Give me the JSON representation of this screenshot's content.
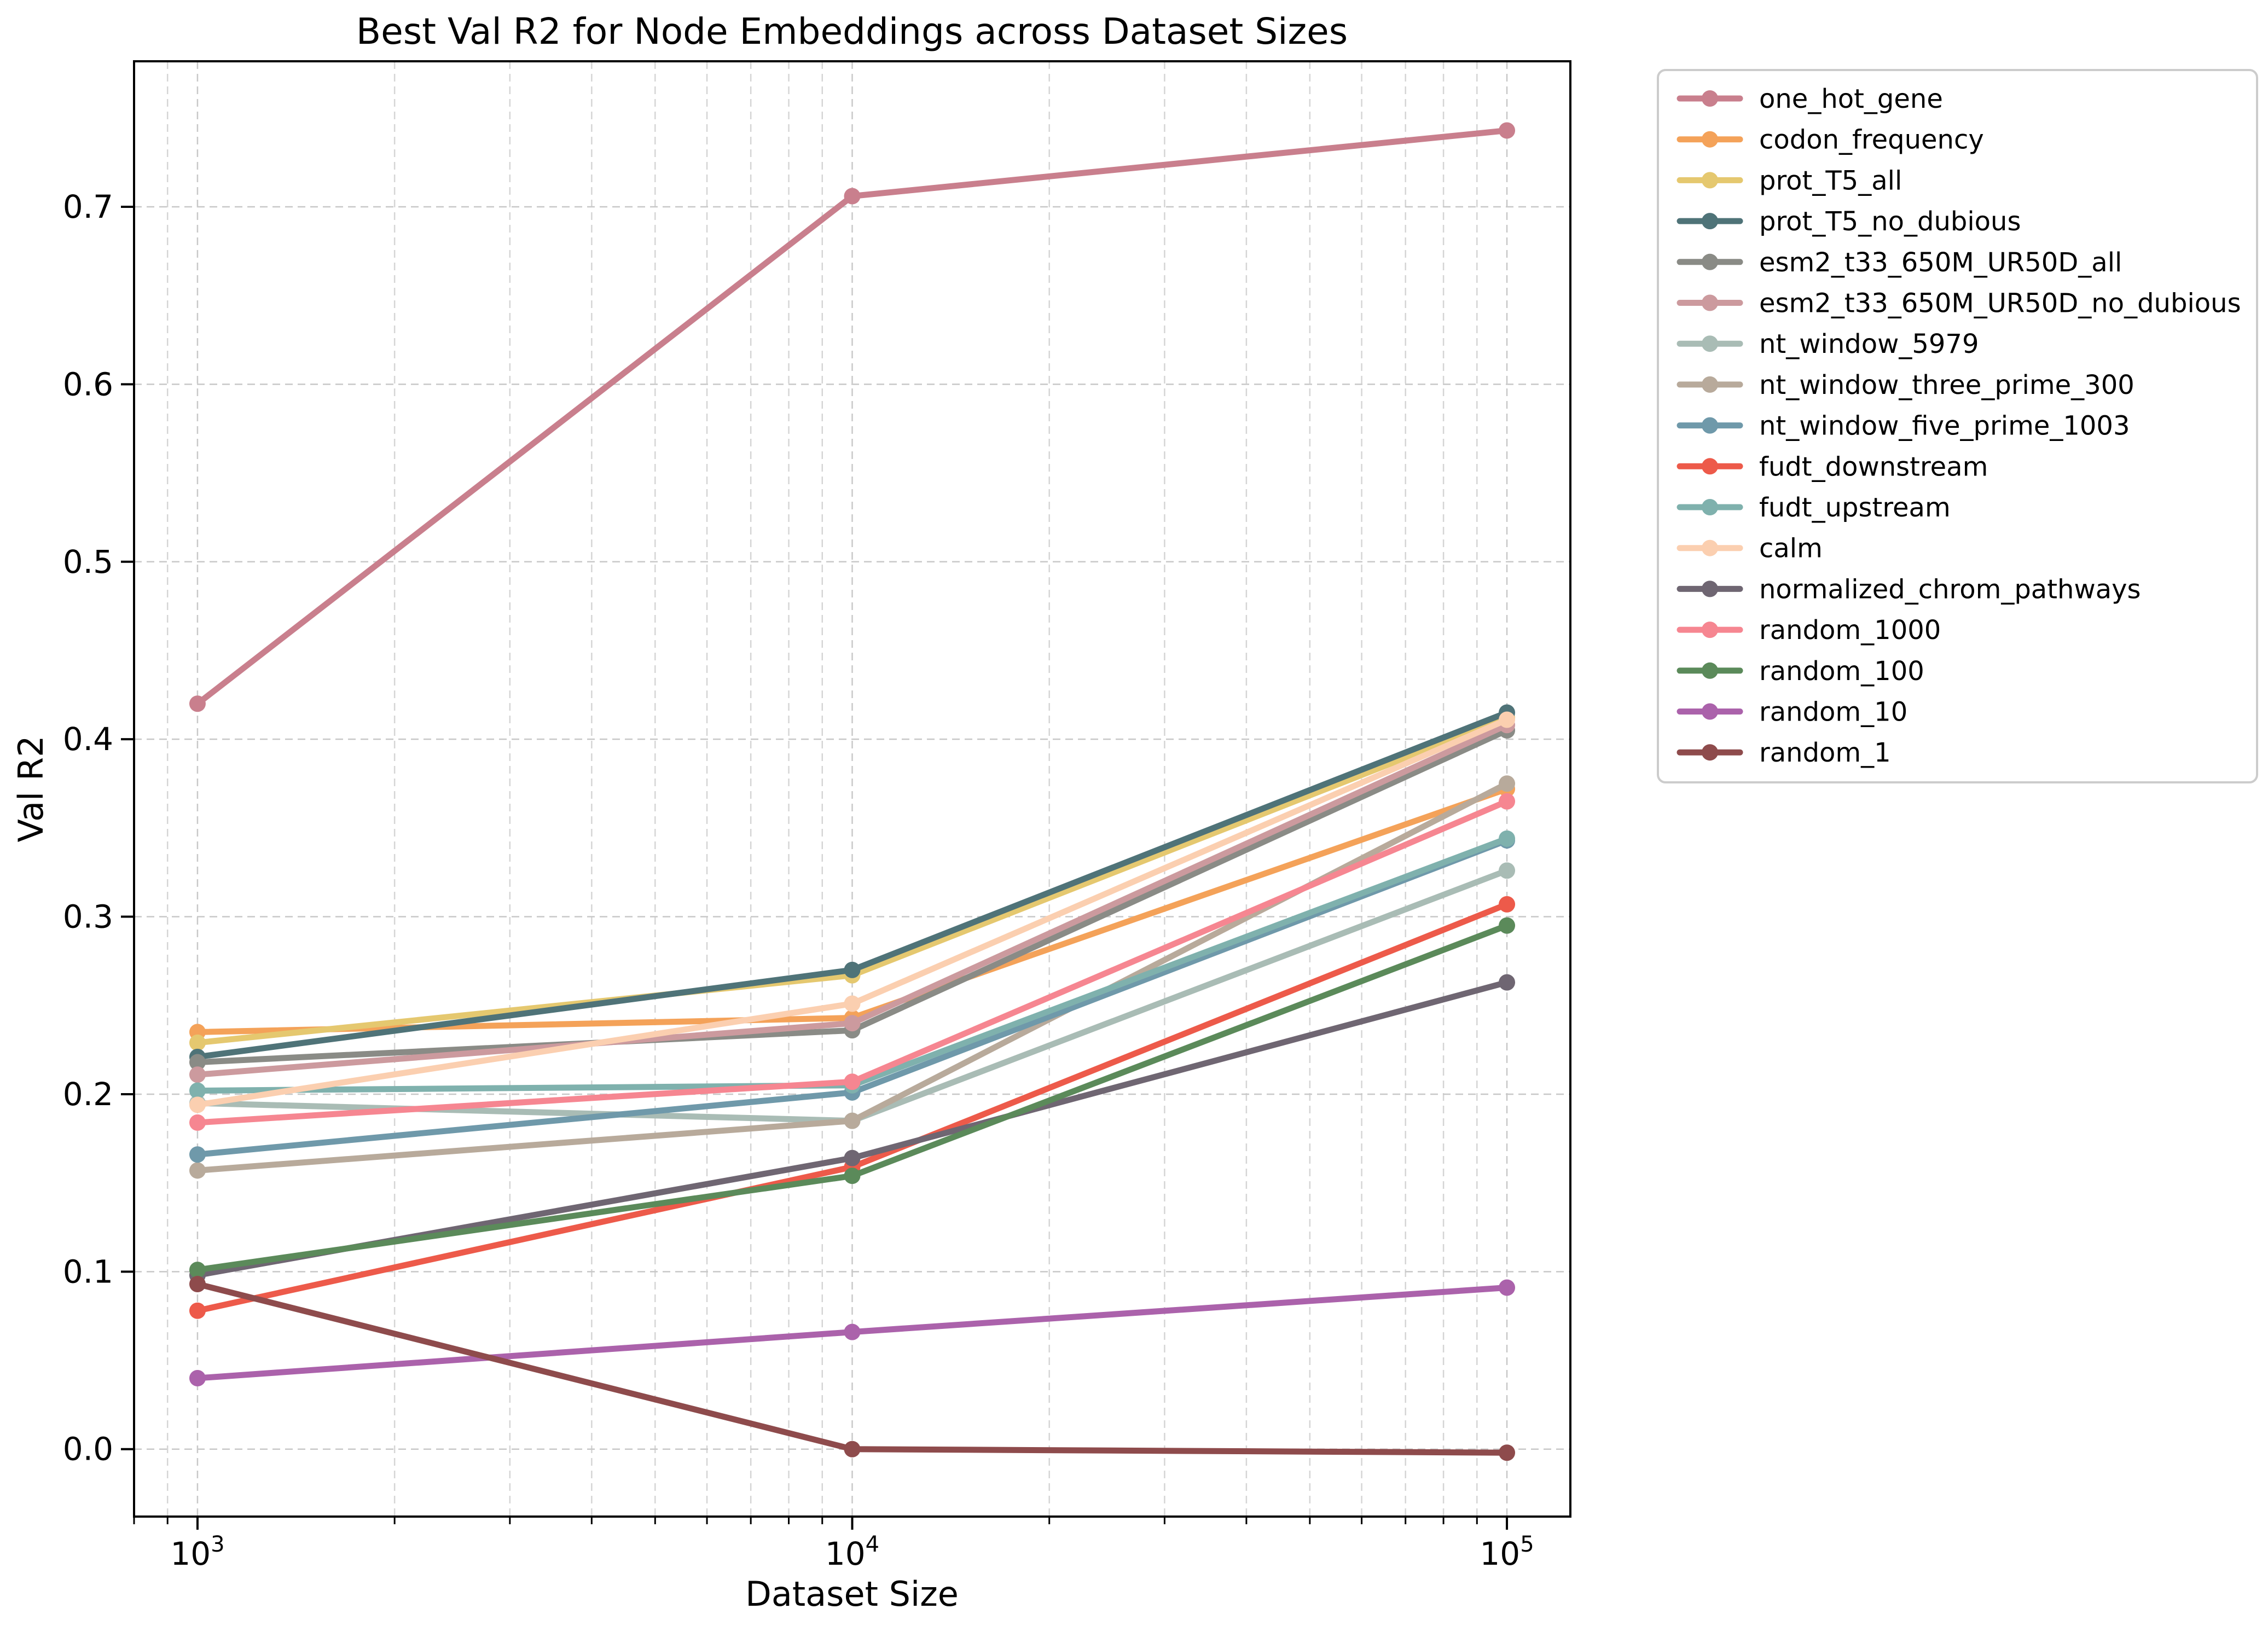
{
  "chart_data": {
    "type": "line",
    "title": "Best Val R2 for Node Embeddings across Dataset Sizes",
    "xlabel": "Dataset Size",
    "ylabel": "Val R2",
    "xscale": "log",
    "x": [
      1000,
      10000,
      100000
    ],
    "xlim": [
      800,
      125000
    ],
    "ylim": [
      -0.038,
      0.782
    ],
    "x_ticks": [
      {
        "value": 1000,
        "base": "10",
        "exp": "3"
      },
      {
        "value": 10000,
        "base": "10",
        "exp": "4"
      },
      {
        "value": 100000,
        "base": "10",
        "exp": "5"
      }
    ],
    "y_ticks": [
      {
        "value": 0.0,
        "label": "0.0"
      },
      {
        "value": 0.1,
        "label": "0.1"
      },
      {
        "value": 0.2,
        "label": "0.2"
      },
      {
        "value": 0.3,
        "label": "0.3"
      },
      {
        "value": 0.4,
        "label": "0.4"
      },
      {
        "value": 0.5,
        "label": "0.5"
      },
      {
        "value": 0.6,
        "label": "0.6"
      },
      {
        "value": 0.7,
        "label": "0.7"
      }
    ],
    "grid": true,
    "legend_position": "outside-right",
    "series": [
      {
        "name": "one_hot_gene",
        "color": "#c97f8d",
        "values": [
          0.42,
          0.706,
          0.743
        ]
      },
      {
        "name": "codon_frequency",
        "color": "#f4a259",
        "values": [
          0.235,
          0.243,
          0.372
        ]
      },
      {
        "name": "prot_T5_all",
        "color": "#e5c86f",
        "values": [
          0.229,
          0.267,
          0.412
        ]
      },
      {
        "name": "prot_T5_no_dubious",
        "color": "#4f7378",
        "values": [
          0.221,
          0.27,
          0.415
        ]
      },
      {
        "name": "esm2_t33_650M_UR50D_all",
        "color": "#8a8b86",
        "values": [
          0.218,
          0.236,
          0.405
        ]
      },
      {
        "name": "esm2_t33_650M_UR50D_no_dubious",
        "color": "#cc9a9e",
        "values": [
          0.211,
          0.24,
          0.408
        ]
      },
      {
        "name": "nt_window_5979",
        "color": "#a9bcb5",
        "values": [
          0.195,
          0.185,
          0.326
        ]
      },
      {
        "name": "nt_window_three_prime_300",
        "color": "#b8aa9b",
        "values": [
          0.157,
          0.185,
          0.375
        ]
      },
      {
        "name": "nt_window_five_prime_1003",
        "color": "#6f99aa",
        "values": [
          0.166,
          0.201,
          0.343
        ]
      },
      {
        "name": "fudt_downstream",
        "color": "#ed5a4a",
        "values": [
          0.078,
          0.159,
          0.307
        ]
      },
      {
        "name": "fudt_upstream",
        "color": "#7fb1ad",
        "values": [
          0.202,
          0.205,
          0.344
        ]
      },
      {
        "name": "calm",
        "color": "#fbcfb0",
        "values": [
          0.194,
          0.251,
          0.411
        ]
      },
      {
        "name": "normalized_chrom_pathways",
        "color": "#6f6672",
        "values": [
          0.098,
          0.164,
          0.263
        ]
      },
      {
        "name": "random_1000",
        "color": "#f68691",
        "values": [
          0.184,
          0.207,
          0.365
        ]
      },
      {
        "name": "random_100",
        "color": "#5b8a5a",
        "values": [
          0.101,
          0.154,
          0.295
        ]
      },
      {
        "name": "random_10",
        "color": "#ab62ab",
        "values": [
          0.04,
          0.066,
          0.091
        ]
      },
      {
        "name": "random_1",
        "color": "#8e4b4c",
        "values": [
          0.093,
          0.0,
          -0.002
        ]
      }
    ]
  }
}
